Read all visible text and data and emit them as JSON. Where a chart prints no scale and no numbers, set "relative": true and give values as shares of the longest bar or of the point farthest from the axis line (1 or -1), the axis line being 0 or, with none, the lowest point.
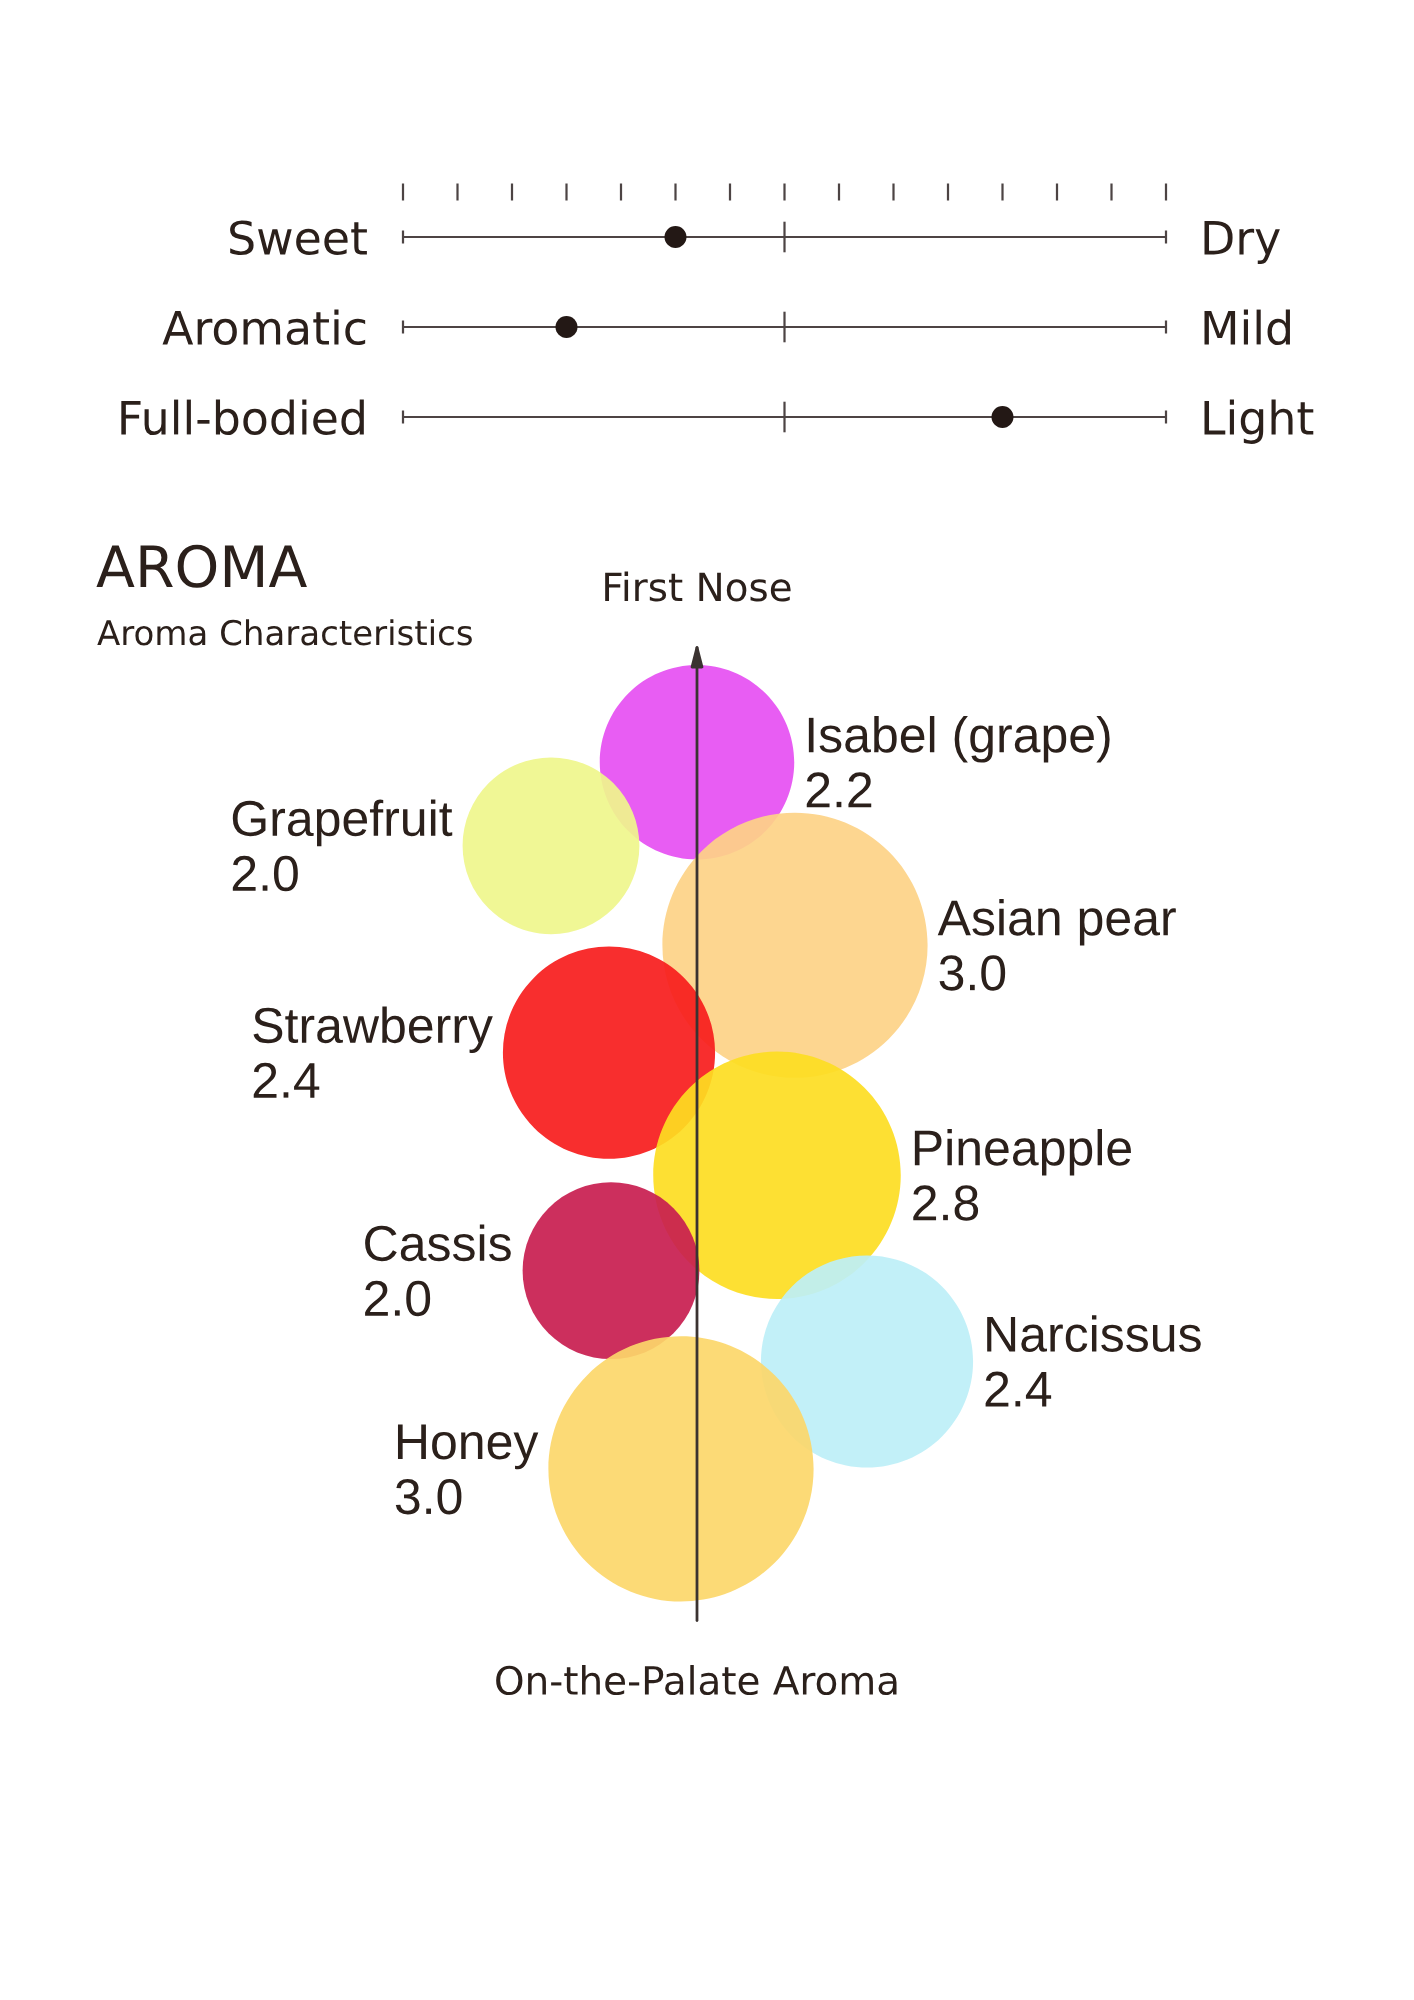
{
  "chart_data": [
    {
      "type": "scatter",
      "orientation": "horizontal",
      "relative": true,
      "categories": [
        "Sweet",
        "Aromatic",
        "Full-bodied"
      ],
      "y2_categories": [
        "Dry",
        "Mild",
        "Light"
      ],
      "values": [
        0.25,
        0,
        1
      ],
      "color": "#231815",
      "marker": "circle",
      "grid": "y",
      "ref_lines": [
        {
          "axis": "x",
          "value": 0.5,
          "color": "#4d4444"
        }
      ]
    },
    {
      "type": "other",
      "title": "AROMA",
      "subtitle": "Aroma Characteristics",
      "categories": [
        "Isabel (grape)",
        "Grapefruit",
        "Asian pear",
        "Strawberry",
        "Pineapple",
        "Cassis",
        "Narcissus",
        "Honey"
      ],
      "values": [
        2.2,
        2.0,
        3.0,
        2.4,
        2.8,
        2.0,
        2.4,
        3.0
      ],
      "value_labels": [
        "2.2",
        "2.0",
        "3.0",
        "2.4",
        "2.8",
        "2.0",
        "2.4",
        "3.0"
      ],
      "colors": [
        "#e64ff2",
        "#eff68c",
        "#fdd387",
        "#f71c1c",
        "#fddd22",
        "#c81d4f",
        "#bdeff7",
        "#fcd76a"
      ],
      "annotations": [
        "First Nose",
        "On-the-Palate Aroma"
      ]
    }
  ]
}
